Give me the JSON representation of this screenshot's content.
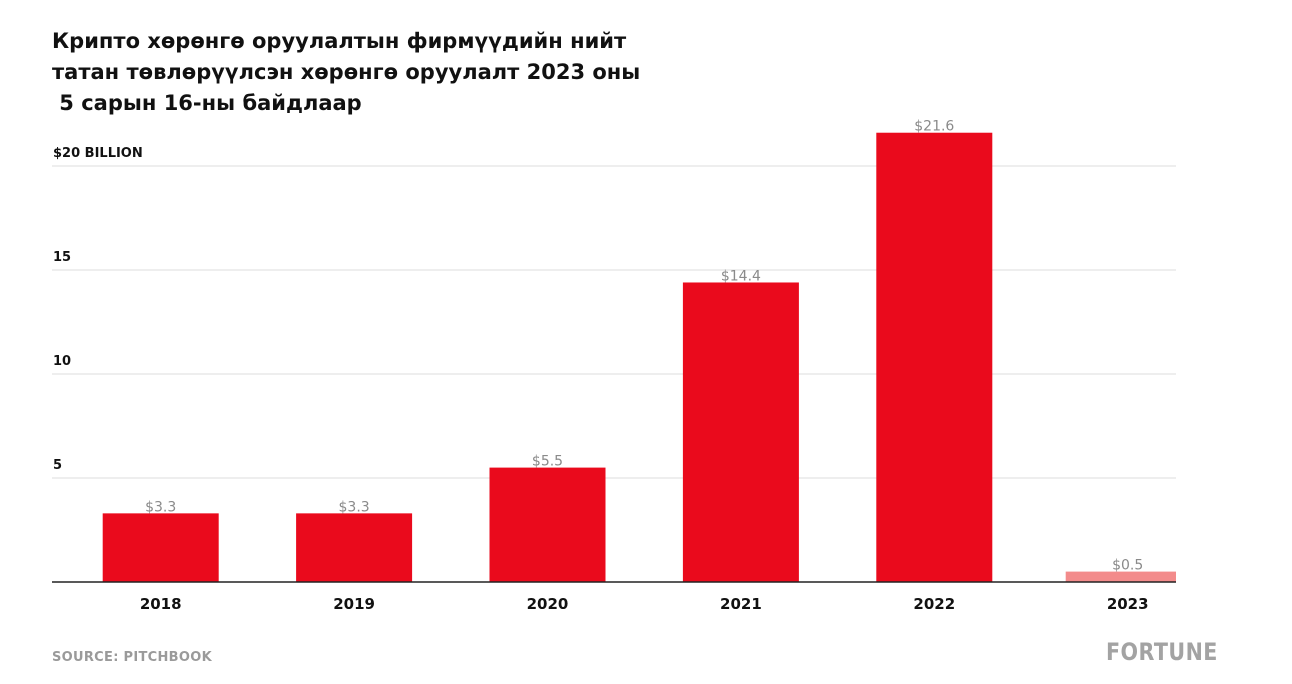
{
  "chart_data": {
    "type": "bar",
    "title_lines": [
      "Крипто хөрөнгө оруулалтын фирмүүдийн нийт",
      "татан төвлөрүүлсэн хөрөнгө оруулалт 2023 оны",
      " 5 сарын 16-ны байдлаар"
    ],
    "categories": [
      "2018",
      "2019",
      "2020",
      "2021",
      "2022",
      "2023"
    ],
    "values": [
      3.3,
      3.3,
      5.5,
      14.4,
      21.6,
      0.5
    ],
    "data_labels": [
      "$3.3",
      "$3.3",
      "$5.5",
      "$14.4",
      "$21.6",
      "$0.5"
    ],
    "y_ticks": [
      {
        "value": 20,
        "label": "$20 BILLION"
      },
      {
        "value": 15,
        "label": "15"
      },
      {
        "value": 10,
        "label": "10"
      },
      {
        "value": 5,
        "label": "5"
      }
    ],
    "ylim": [
      0,
      21.6
    ],
    "grid": true,
    "colors": {
      "bar": "#ea0a1c",
      "bar_partial": "#f38b8b",
      "grid": "#dcdcdc",
      "axis": "#222222",
      "data_label": "#8a8a8a"
    },
    "partial_index": 5
  },
  "footer": {
    "source": "SOURCE: PITCHBOOK",
    "brand": "FORTUNE"
  }
}
